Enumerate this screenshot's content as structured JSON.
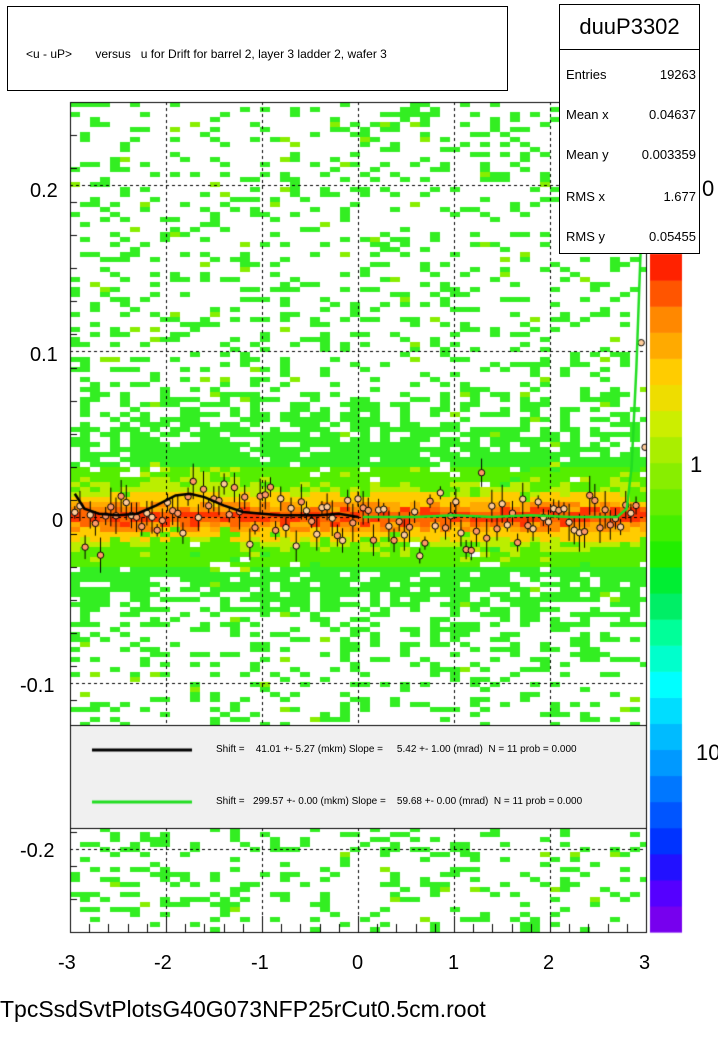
{
  "chart_data": {
    "type": "heatmap",
    "title": "<u - uP>       versus   u for Drift for barrel 2, layer 3 ladder 2, wafer 3",
    "xlim": [
      -3,
      3
    ],
    "ylim": [
      -0.25,
      0.25
    ],
    "x_ticks": [
      "-3",
      "-2",
      "-1",
      "0",
      "1",
      "2",
      "3"
    ],
    "y_ticks": [
      "-0.2",
      "-0.1",
      "0",
      "0.1",
      "0.2"
    ],
    "colorbar_labels": [
      "0",
      "1",
      "10"
    ],
    "stats": {
      "name": "duuP3302",
      "rows": [
        {
          "key": "Entries",
          "value": "19263"
        },
        {
          "key": "Mean x",
          "value": "0.04637"
        },
        {
          "key": "Mean y",
          "value": "0.003359"
        },
        {
          "key": "RMS x",
          "value": "1.677"
        },
        {
          "key": "RMS y",
          "value": "0.05455"
        }
      ]
    },
    "fits": [
      {
        "color": "#000000",
        "text": "Shift =    41.01 +- 5.27 (mkm) Slope =     5.42 +- 1.00 (mrad)  N = 11 prob = 0.000"
      },
      {
        "color": "#22dd22",
        "text": "Shift =   299.57 +- 0.00 (mkm) Slope =    59.68 +- 0.00 (mrad)  N = 11 prob = 0.000"
      }
    ],
    "profile_black": {
      "x": [
        -2.95,
        -2.85,
        -2.7,
        -2.5,
        -2.3,
        -2.1,
        -1.9,
        -1.75,
        -1.6,
        -1.4,
        -1.2,
        -1.0,
        -0.8,
        -0.6,
        -0.4,
        -0.2,
        0.0
      ],
      "y": [
        0.014,
        0.005,
        0.002,
        0.001,
        0.002,
        0.007,
        0.013,
        0.014,
        0.012,
        0.007,
        0.003,
        0.002,
        0.001,
        0.001,
        0.001,
        0.002,
        0.0
      ]
    },
    "profile_green": {
      "x": [
        0.05,
        0.3,
        0.6,
        1.0,
        1.4,
        1.8,
        2.2,
        2.5,
        2.7,
        2.8,
        2.85,
        2.9,
        2.95,
        3.0
      ],
      "y": [
        0.0,
        0.0,
        0.0,
        0.001,
        0.0,
        0.001,
        0.0,
        0.0,
        0.0,
        0.005,
        0.03,
        0.09,
        0.17,
        0.23
      ]
    }
  },
  "footer": "TpcSsdSvtPlotsG40G073NFP25rCut0.5cm.root"
}
